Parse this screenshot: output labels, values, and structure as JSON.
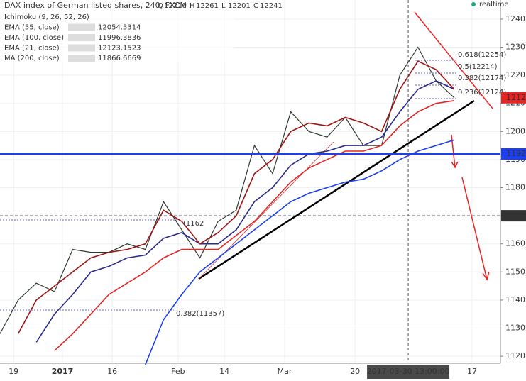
{
  "chart_data": {
    "type": "line",
    "title": "DAX index of German listed shares, 240, FXCM",
    "ohlc": [
      {
        "label": "O",
        "value": 12210
      },
      {
        "label": "H",
        "value": 12261
      },
      {
        "label": "L",
        "value": 12201
      },
      {
        "label": "C",
        "value": 12241
      }
    ],
    "status": "realtime",
    "indicator": "Ichimoku (9, 26, 52, 26)",
    "x": [
      0,
      8,
      16,
      24,
      32,
      40,
      48,
      56,
      64,
      72,
      80,
      88,
      96,
      104,
      112,
      120,
      128,
      136,
      144,
      152,
      160,
      168,
      176,
      184,
      192,
      200
    ],
    "series": [
      {
        "color": "#2e3b2e",
        "values": [
          1128,
          1140,
          1146,
          1143,
          1158,
          1157,
          1157,
          1160,
          1158,
          1175,
          1165,
          1155,
          1168,
          1172,
          1195,
          1185,
          1207,
          1200,
          1198,
          1205,
          1195,
          1195,
          1220,
          1230,
          1218,
          1212
        ]
      },
      {
        "name": "EMA (55, close)",
        "last_value": 12054.5314,
        "color": "#2a2a8c",
        "values": [
          null,
          null,
          1125,
          1135,
          1142,
          1150,
          1152,
          1155,
          1156,
          1162,
          1164,
          1160,
          1160,
          1165,
          1175,
          1180,
          1188,
          1192,
          1193,
          1195,
          1195,
          1198,
          1207,
          1215,
          1218,
          1215
        ]
      },
      {
        "name": "EMA (100, close)",
        "last_value": 11996.3836,
        "color": "#e32626",
        "values": [
          null,
          null,
          null,
          1122,
          1128,
          1135,
          1142,
          1146,
          1150,
          1155,
          1158,
          1158,
          1158,
          1163,
          1168,
          1175,
          1182,
          1187,
          1190,
          1193,
          1193,
          1195,
          1202,
          1207,
          1210,
          1211
        ]
      },
      {
        "name": "EMA (21, close)",
        "last_value": 12123.1523,
        "color": "#9c1414",
        "values": [
          null,
          1128,
          1140,
          1145,
          1150,
          1155,
          1157,
          1158,
          1160,
          1172,
          1168,
          1160,
          1164,
          1170,
          1185,
          1190,
          1200,
          1203,
          1202,
          1205,
          1203,
          1200,
          1215,
          1225,
          1222,
          1215
        ]
      },
      {
        "name": "MA (200, close)",
        "last_value": 11866.6669,
        "color": "#1c3ff0",
        "values": [
          null,
          null,
          null,
          null,
          null,
          null,
          null,
          null,
          1117,
          1133,
          1142,
          1150,
          1155,
          1160,
          1165,
          1170,
          1175,
          1178,
          1180,
          1182,
          1183,
          1186,
          1190,
          1193,
          1195,
          1197
        ]
      }
    ],
    "xlim": [
      0,
      220.3
    ],
    "xticks": [
      {
        "value": 6,
        "label": "19"
      },
      {
        "value": 27.5,
        "label": "2017"
      },
      {
        "value": 49.4,
        "label": "16"
      },
      {
        "value": 78.4,
        "label": "Feb"
      },
      {
        "value": 98.8,
        "label": "14"
      },
      {
        "value": 125.3,
        "label": "Mar"
      },
      {
        "value": 156.3,
        "label": "20"
      },
      {
        "value": 207.8,
        "label": "17"
      }
    ],
    "ylim": [
      1117.5,
      1246.8
    ],
    "yticks": [
      1120,
      1130,
      1140,
      1150,
      1160,
      1170,
      1180,
      1190,
      1200,
      1210,
      1220,
      1230,
      1240
    ],
    "price_lines": [
      {
        "value": 1212,
        "label": "1212",
        "color": "#e32626"
      },
      {
        "value": 1192,
        "label": "1192",
        "color": "#1c3ff0"
      },
      {
        "value": 1170,
        "label": "1170",
        "color": "#333333"
      }
    ],
    "crosshair": {
      "value": 179.7,
      "label": "2017-03-30 13:00:00"
    },
    "annotations": [
      "0.618(12254)",
      "0.5(12214)",
      "0.382(12174)",
      "0.236(12124)",
      "0.382(11357)",
      "(1162"
    ]
  }
}
